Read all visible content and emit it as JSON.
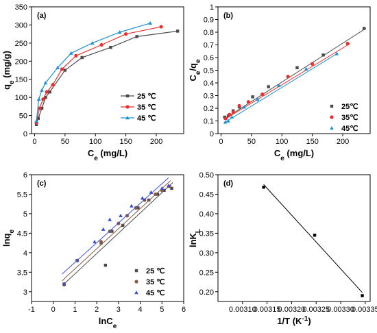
{
  "colors": {
    "s25": "#4a4a4a",
    "s35": "#e8312f",
    "s45": "#1f8fd6",
    "fit_d": "#000000"
  },
  "chart_data": [
    {
      "id": "a",
      "type": "line",
      "panel_label": "(a)",
      "xlabel": {
        "main": "C",
        "sub": "e",
        "tail": " (mg/L)"
      },
      "ylabel": {
        "main": "q",
        "sub": "e",
        "tail": " (mg/g)"
      },
      "xlim": [
        -5,
        245
      ],
      "ylim": [
        0,
        350
      ],
      "xticks": [
        0,
        50,
        100,
        150,
        200
      ],
      "yticks": [
        0,
        50,
        100,
        150,
        200,
        250,
        300,
        350
      ],
      "legend_position": "bottom-right",
      "series": [
        {
          "name": "25 ℃",
          "marker": "square",
          "color": "#4a4a4a",
          "x": [
            3,
            6,
            12,
            18,
            25,
            50,
            78,
            125,
            168,
            235
          ],
          "y": [
            25,
            42,
            70,
            100,
            115,
            175,
            210,
            238,
            268,
            283
          ]
        },
        {
          "name": "35 ℃",
          "marker": "circle",
          "color": "#e8312f",
          "x": [
            3,
            8,
            14,
            20,
            30,
            45,
            68,
            110,
            150,
            208
          ],
          "y": [
            30,
            70,
            95,
            115,
            135,
            178,
            215,
            245,
            275,
            295
          ]
        },
        {
          "name": "45 ℃",
          "marker": "triangle",
          "color": "#1f8fd6",
          "x": [
            3,
            7,
            12,
            18,
            38,
            60,
            95,
            140,
            190
          ],
          "y": [
            35,
            95,
            120,
            140,
            182,
            222,
            250,
            280,
            305
          ]
        }
      ]
    },
    {
      "id": "b",
      "type": "scatter",
      "panel_label": "(b)",
      "xlabel": {
        "main": "C",
        "sub": "e",
        "tail": " (mg/L)"
      },
      "ylabel": {
        "main": "C",
        "sub": "e",
        "tail": "/q",
        "sub2": "e"
      },
      "xlim": [
        -5,
        245
      ],
      "ylim": [
        0,
        1.0
      ],
      "xticks": [
        0,
        50,
        100,
        150,
        200
      ],
      "yticks": [
        0.0,
        0.1,
        0.2,
        0.3,
        0.4,
        0.5,
        0.6,
        0.7,
        0.8,
        0.9,
        1.0
      ],
      "legend_position": "bottom-right",
      "series": [
        {
          "name": "25℃",
          "marker": "square",
          "color": "#4a4a4a",
          "x": [
            6,
            12,
            20,
            30,
            52,
            78,
            125,
            168,
            235
          ],
          "y": [
            0.13,
            0.14,
            0.18,
            0.21,
            0.29,
            0.37,
            0.52,
            0.62,
            0.83
          ],
          "fit": {
            "x0": 5,
            "y0": 0.115,
            "x1": 238,
            "y1": 0.83
          }
        },
        {
          "name": "35℃",
          "marker": "circle",
          "color": "#e8312f",
          "x": [
            8,
            14,
            20,
            30,
            45,
            68,
            110,
            150,
            208
          ],
          "y": [
            0.12,
            0.15,
            0.17,
            0.22,
            0.25,
            0.31,
            0.45,
            0.55,
            0.71
          ],
          "fit": {
            "x0": 5,
            "y0": 0.11,
            "x1": 212,
            "y1": 0.71
          }
        },
        {
          "name": "45℃",
          "marker": "triangle",
          "color": "#1f8fd6",
          "x": [
            7,
            12,
            18,
            38,
            60,
            95,
            140,
            190
          ],
          "y": [
            0.09,
            0.1,
            0.13,
            0.21,
            0.27,
            0.38,
            0.51,
            0.63
          ],
          "fit": {
            "x0": 5,
            "y0": 0.085,
            "x1": 192,
            "y1": 0.635
          }
        }
      ]
    },
    {
      "id": "c",
      "type": "scatter",
      "panel_label": "(c)",
      "xlabel": {
        "main": "lnC",
        "sub": "e",
        "tail": ""
      },
      "ylabel": {
        "main": "lnq",
        "sub": "e",
        "tail": ""
      },
      "xlim": [
        -1,
        6
      ],
      "ylim": [
        2.75,
        6.0
      ],
      "xticks": [
        -1,
        0,
        1,
        2,
        3,
        4,
        5,
        6
      ],
      "yticks": [
        3.0,
        3.5,
        4.0,
        4.5,
        5.0,
        5.5,
        6.0
      ],
      "legend_position": "bottom-right",
      "series": [
        {
          "name": "25 ℃",
          "marker": "square",
          "color": "#4a4a4a",
          "x": [
            0.5,
            1.1,
            2.2,
            2.4,
            2.7,
            3.2,
            3.9,
            4.4,
            4.8,
            5.1,
            5.45
          ],
          "y": [
            3.2,
            3.8,
            4.25,
            3.68,
            4.55,
            4.7,
            5.15,
            5.35,
            5.5,
            5.6,
            5.65
          ],
          "fit": {
            "x0": 0.5,
            "y0": 3.2,
            "x1": 5.5,
            "y1": 5.8
          }
        },
        {
          "name": "35 ℃",
          "marker": "circle",
          "color": "#8a5a44",
          "x": [
            0.5,
            1.1,
            2.2,
            2.6,
            3.0,
            3.4,
            3.8,
            4.2,
            4.7,
            5.0,
            5.35
          ],
          "y": [
            3.18,
            3.8,
            4.28,
            4.55,
            4.75,
            4.95,
            5.15,
            5.35,
            5.5,
            5.6,
            5.7
          ],
          "fit": {
            "x0": 0.4,
            "y0": 3.28,
            "x1": 5.4,
            "y1": 5.85
          }
        },
        {
          "name": "45 ℃",
          "marker": "triangle",
          "color": "#3a4fd6",
          "x": [
            0.5,
            1.1,
            1.9,
            2.3,
            2.6,
            3.1,
            3.6,
            4.1,
            4.5,
            5.0,
            5.3
          ],
          "y": [
            3.2,
            3.8,
            4.28,
            4.6,
            4.85,
            4.95,
            5.2,
            5.4,
            5.55,
            5.65,
            5.72
          ],
          "fit": {
            "x0": 0.4,
            "y0": 3.45,
            "x1": 5.3,
            "y1": 5.92
          }
        }
      ]
    },
    {
      "id": "d",
      "type": "scatter",
      "panel_label": "(d)",
      "xlabel": {
        "main": "1/T (K",
        "sup": "-1",
        "tail": ")"
      },
      "ylabel": {
        "main": "lnK",
        "sub": "L",
        "tail": ""
      },
      "xlim": [
        0.00305,
        0.00336
      ],
      "ylim": [
        0.175,
        0.5
      ],
      "xticks": [
        0.0031,
        0.00315,
        0.0032,
        0.00325,
        0.0033,
        0.00335
      ],
      "xtick_labels": [
        "0.00310",
        "0.00315",
        "0.00320",
        "0.00325",
        "0.00330",
        "0.00335"
      ],
      "yticks": [
        0.2,
        0.25,
        0.3,
        0.35,
        0.4,
        0.45,
        0.5
      ],
      "ytick_labels": [
        "0.20",
        "0.25",
        "0.30",
        "0.35",
        "0.40",
        "0.45",
        "0.50"
      ],
      "series": [
        {
          "marker": "square",
          "color": "#000000",
          "x": [
            0.003143,
            0.003247,
            0.003344
          ],
          "y": [
            0.468,
            0.345,
            0.19
          ],
          "fit": {
            "x0": 0.003143,
            "y0": 0.475,
            "x1": 0.003344,
            "y1": 0.198
          }
        }
      ]
    }
  ]
}
